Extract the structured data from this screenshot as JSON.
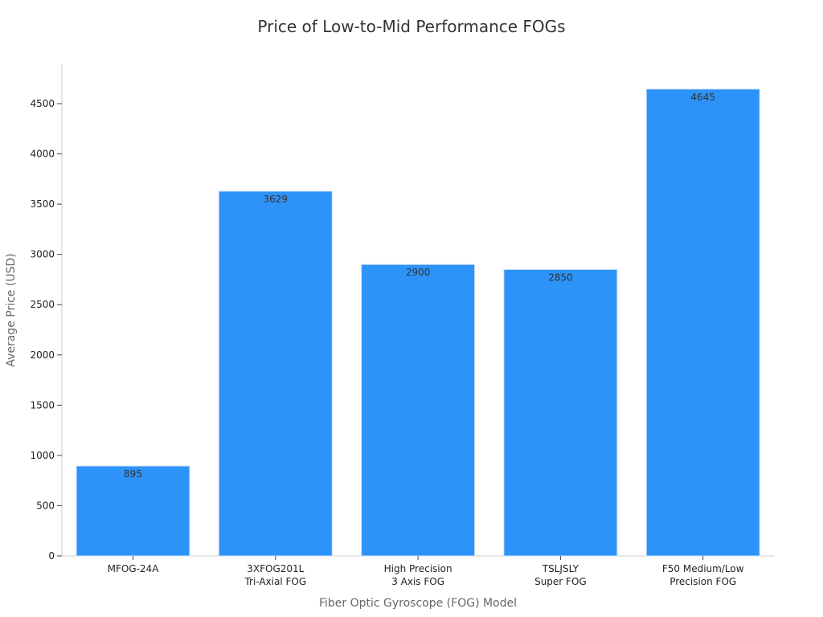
{
  "chart_data": {
    "type": "bar",
    "title": "Price of Low-to-Mid Performance FOGs",
    "xlabel": "Fiber Optic Gyroscope (FOG) Model",
    "ylabel": "Average Price (USD)",
    "categories": [
      [
        "MFOG-24A"
      ],
      [
        "3XFOG201L",
        "Tri-Axial FOG"
      ],
      [
        "High Precision",
        "3 Axis FOG"
      ],
      [
        "TSLJSLY",
        "Super FOG"
      ],
      [
        "F50 Medium/Low",
        "Precision FOG"
      ]
    ],
    "values": [
      895,
      3629,
      2900,
      2850,
      4645
    ],
    "ylim": [
      0,
      4900
    ],
    "yticks": [
      0,
      500,
      1000,
      1500,
      2000,
      2500,
      3000,
      3500,
      4000,
      4500
    ],
    "bar_color": "#2e93f8",
    "bar_edge_color": "#cfe3f7",
    "grid": false,
    "legend": "none"
  }
}
